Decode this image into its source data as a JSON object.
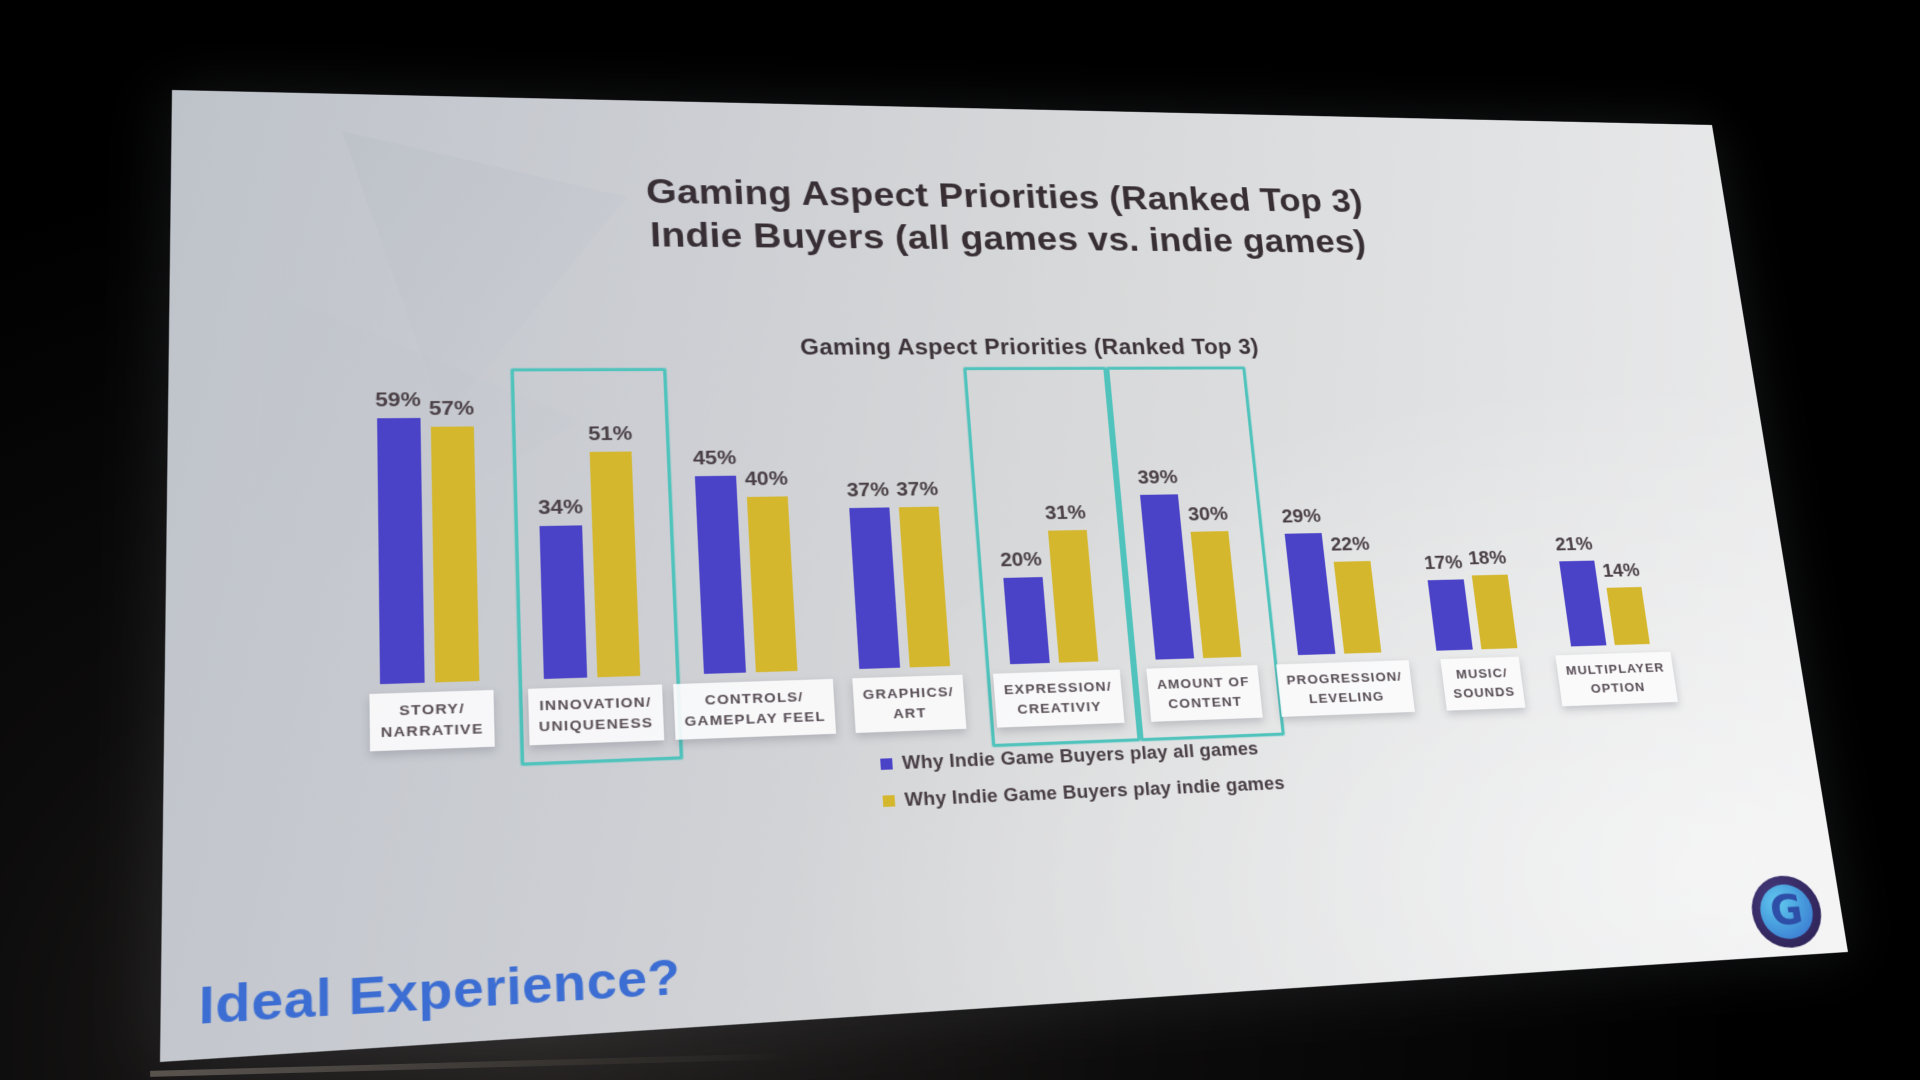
{
  "slide": {
    "title_line1": "Gaming Aspect Priorities (Ranked Top 3)",
    "title_line2": "Indie Buyers (all games vs. indie games)",
    "footer_question": "Ideal Experience?",
    "logo_letter": "G"
  },
  "chart_data": {
    "type": "bar",
    "title": "Gaming Aspect Priorities (Ranked Top 3)",
    "categories": [
      [
        "STORY/",
        "NARRATIVE"
      ],
      [
        "INNOVATION/",
        "UNIQUENESS"
      ],
      [
        "CONTROLS/",
        "GAMEPLAY FEEL"
      ],
      [
        "GRAPHICS/",
        "ART"
      ],
      [
        "EXPRESSION/",
        "CREATIVIY"
      ],
      [
        "AMOUNT OF",
        "CONTENT"
      ],
      [
        "PROGRESSION/",
        "LEVELING"
      ],
      [
        "MUSIC/",
        "SOUNDS"
      ],
      [
        "MULTIPLAYER",
        "OPTION"
      ]
    ],
    "series": [
      {
        "name": "Why Indie Game Buyers play all games",
        "color": "#4a43c8",
        "values": [
          59,
          34,
          45,
          37,
          20,
          39,
          29,
          17,
          21
        ]
      },
      {
        "name": "Why Indie Game Buyers play indie games",
        "color": "#d4b72d",
        "values": [
          57,
          51,
          40,
          37,
          31,
          30,
          22,
          18,
          14
        ]
      }
    ],
    "value_suffix": "%",
    "highlighted_category_indexes": [
      1,
      4,
      5
    ],
    "highlight_color": "#4fc3bc",
    "ylim": [
      0,
      65
    ],
    "grid": false,
    "legend_position": "bottom-center"
  }
}
